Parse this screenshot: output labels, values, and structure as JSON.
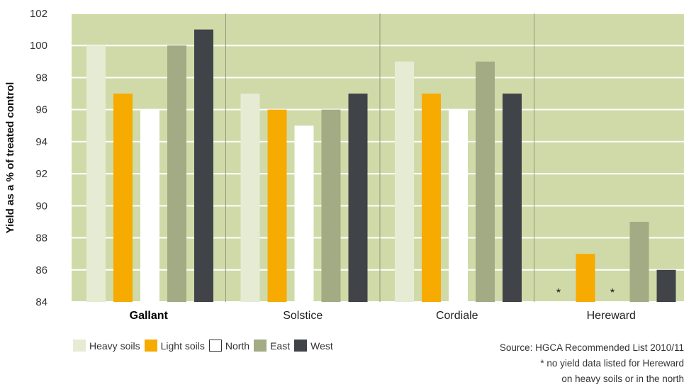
{
  "chart_data": {
    "type": "bar",
    "ylabel": "Yield as a % of treated control",
    "xlabel": "",
    "ylim": [
      84,
      102
    ],
    "y_ticks": [
      84,
      86,
      88,
      90,
      92,
      94,
      96,
      98,
      100,
      102
    ],
    "categories": [
      "Gallant",
      "Solstice",
      "Cordiale",
      "Hereward"
    ],
    "series": [
      {
        "name": "Heavy soils",
        "color": "#e6ecd4",
        "values": [
          100,
          97,
          99,
          null
        ],
        "missing_marker": [
          "",
          "",
          "",
          "*"
        ]
      },
      {
        "name": "Light soils",
        "color": "#f7ab00",
        "values": [
          97,
          96,
          97,
          87
        ],
        "missing_marker": [
          "",
          "",
          "",
          ""
        ]
      },
      {
        "name": "North",
        "color": "#ffffff",
        "values": [
          96,
          95,
          96,
          null
        ],
        "missing_marker": [
          "",
          "",
          "",
          "*"
        ]
      },
      {
        "name": "East",
        "color": "#a2ab84",
        "values": [
          100,
          96,
          99,
          89
        ],
        "missing_marker": [
          "",
          "",
          "",
          ""
        ]
      },
      {
        "name": "West",
        "color": "#404448",
        "values": [
          101,
          97,
          97,
          86
        ],
        "missing_marker": [
          "",
          "",
          "",
          ""
        ]
      }
    ],
    "highlighted_category": "Gallant",
    "background_color": "#cfdaa8",
    "grid": true,
    "legend_position": "bottom-left"
  },
  "source_note": [
    "Source: HGCA Recommended List 2010/11",
    "* no yield data listed for Hereward",
    "on heavy soils or in the north"
  ]
}
